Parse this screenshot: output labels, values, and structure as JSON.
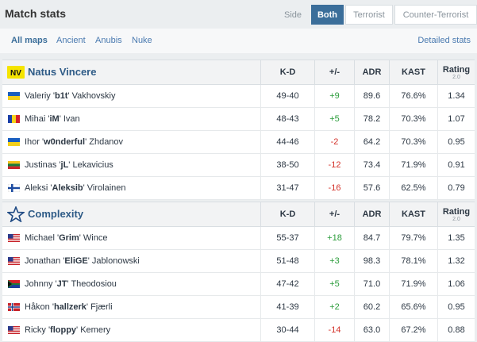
{
  "header": {
    "title": "Match stats",
    "side_label": "Side",
    "sides": [
      "Both",
      "Terrorist",
      "Counter-Terrorist"
    ]
  },
  "maps": {
    "items": [
      "All maps",
      "Ancient",
      "Anubis",
      "Nuke"
    ],
    "active": "All maps",
    "detailed_link": "Detailed stats"
  },
  "columns": {
    "kd": "K-D",
    "pm": "+/-",
    "adr": "ADR",
    "kast": "KAST",
    "rating": "Rating",
    "rating_sub": "2.0"
  },
  "colors": {
    "positive": "#2a9c3a",
    "negative": "#d4342c",
    "link": "#2e5b87",
    "accent": "#3b6e9a"
  },
  "teams": [
    {
      "name": "Natus Vincere",
      "logo_icon": "navi-logo-icon",
      "players": [
        {
          "flag": "ukraine-flag-icon",
          "first": "Valeriy '",
          "nick": "b1t",
          "last": "' Vakhovskiy",
          "kd": "49-40",
          "pm": "+9",
          "adr": "89.6",
          "kast": "76.6%",
          "rating": "1.34"
        },
        {
          "flag": "romania-flag-icon",
          "first": "Mihai '",
          "nick": "iM",
          "last": "' Ivan",
          "kd": "48-43",
          "pm": "+5",
          "adr": "78.2",
          "kast": "70.3%",
          "rating": "1.07"
        },
        {
          "flag": "ukraine-flag-icon",
          "first": "Ihor '",
          "nick": "w0nderful",
          "last": "' Zhdanov",
          "kd": "44-46",
          "pm": "-2",
          "adr": "64.2",
          "kast": "70.3%",
          "rating": "0.95"
        },
        {
          "flag": "lithuania-flag-icon",
          "first": "Justinas '",
          "nick": "jL",
          "last": "' Lekavicius",
          "kd": "38-50",
          "pm": "-12",
          "adr": "73.4",
          "kast": "71.9%",
          "rating": "0.91"
        },
        {
          "flag": "finland-flag-icon",
          "first": "Aleksi '",
          "nick": "Aleksib",
          "last": "' Virolainen",
          "kd": "31-47",
          "pm": "-16",
          "adr": "57.6",
          "kast": "62.5%",
          "rating": "0.79"
        }
      ]
    },
    {
      "name": "Complexity",
      "logo_icon": "complexity-star-icon",
      "players": [
        {
          "flag": "usa-flag-icon",
          "first": "Michael '",
          "nick": "Grim",
          "last": "' Wince",
          "kd": "55-37",
          "pm": "+18",
          "adr": "84.7",
          "kast": "79.7%",
          "rating": "1.35"
        },
        {
          "flag": "usa-flag-icon",
          "first": "Jonathan '",
          "nick": "EliGE",
          "last": "' Jablonowski",
          "kd": "51-48",
          "pm": "+3",
          "adr": "98.3",
          "kast": "78.1%",
          "rating": "1.32"
        },
        {
          "flag": "south-africa-flag-icon",
          "first": "Johnny '",
          "nick": "JT",
          "last": "' Theodosiou",
          "kd": "47-42",
          "pm": "+5",
          "adr": "71.0",
          "kast": "71.9%",
          "rating": "1.06"
        },
        {
          "flag": "norway-flag-icon",
          "first": "Håkon '",
          "nick": "hallzerk",
          "last": "' Fjærli",
          "kd": "41-39",
          "pm": "+2",
          "adr": "60.2",
          "kast": "65.6%",
          "rating": "0.95"
        },
        {
          "flag": "usa-flag-icon",
          "first": "Ricky '",
          "nick": "floppy",
          "last": "' Kemery",
          "kd": "30-44",
          "pm": "-14",
          "adr": "63.0",
          "kast": "67.2%",
          "rating": "0.88"
        }
      ]
    }
  ]
}
